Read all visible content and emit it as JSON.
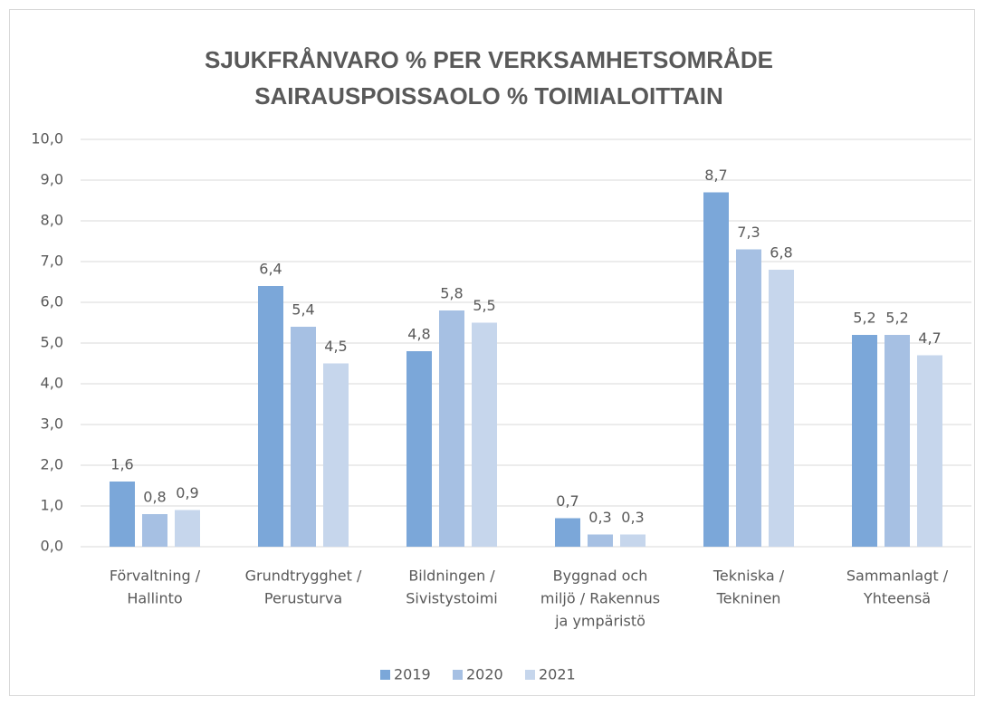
{
  "chart_data": {
    "type": "bar",
    "title": [
      "SJUKFRÅNVARO % PER VERKSAMHETSOMRÅDE",
      "SAIRAUSPOISSAOLO % TOIMIALOITTAIN"
    ],
    "categories": [
      [
        "Förvaltning /",
        "Hallinto"
      ],
      [
        "Grundtrygghet /",
        "Perusturva"
      ],
      [
        "Bildningen /",
        "Sivistystoimi"
      ],
      [
        "Byggnad och",
        "miljö / Rakennus",
        "ja ympäristö"
      ],
      [
        "Tekniska /",
        "Tekninen"
      ],
      [
        "Sammanlagt /",
        "Yhteensä"
      ]
    ],
    "series": [
      {
        "name": "2019",
        "color": "#7ba7d9",
        "values": [
          1.6,
          6.4,
          4.8,
          0.7,
          8.7,
          5.2
        ],
        "value_labels": [
          "1,6",
          "6,4",
          "4,8",
          "0,7",
          "8,7",
          "5,2"
        ]
      },
      {
        "name": "2020",
        "color": "#a6c0e3",
        "values": [
          0.8,
          5.4,
          5.8,
          0.3,
          7.3,
          5.2
        ],
        "value_labels": [
          "0,8",
          "5,4",
          "5,8",
          "0,3",
          "7,3",
          "5,2"
        ]
      },
      {
        "name": "2021",
        "color": "#c6d6ec",
        "values": [
          0.9,
          4.5,
          5.5,
          0.3,
          6.8,
          4.7
        ],
        "value_labels": [
          "0,9",
          "4,5",
          "5,5",
          "0,3",
          "6,8",
          "4,7"
        ]
      }
    ],
    "ylim": [
      0,
      10
    ],
    "yticks": [
      {
        "value": 0,
        "label": "0,0"
      },
      {
        "value": 1,
        "label": "1,0"
      },
      {
        "value": 2,
        "label": "2,0"
      },
      {
        "value": 3,
        "label": "3,0"
      },
      {
        "value": 4,
        "label": "4,0"
      },
      {
        "value": 5,
        "label": "5,0"
      },
      {
        "value": 6,
        "label": "6,0"
      },
      {
        "value": 7,
        "label": "7,0"
      },
      {
        "value": 8,
        "label": "8,0"
      },
      {
        "value": 9,
        "label": "9,0"
      },
      {
        "value": 10,
        "label": "10,0"
      }
    ],
    "grid": true,
    "legend": "bottom"
  }
}
